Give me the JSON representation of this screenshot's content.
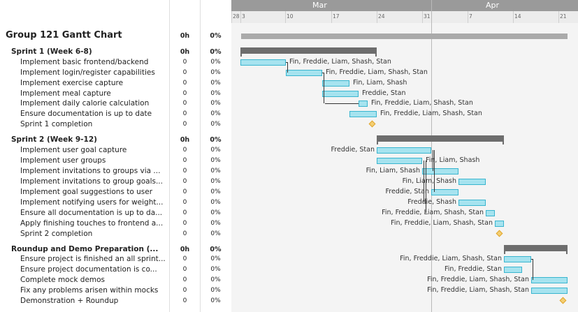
{
  "columns": {
    "hours": "0h",
    "percent": "0%"
  },
  "timeline": {
    "months": [
      {
        "label": "Mar '25"
      },
      {
        "label": "Apr '25"
      }
    ],
    "days": [
      "28",
      "3",
      "10",
      "17",
      "24",
      "31",
      "7",
      "14",
      "21"
    ]
  },
  "rows": [
    {
      "kind": "title",
      "name": "Group 121 Gantt Chart",
      "hours": "0h",
      "pct": "0%"
    },
    {
      "kind": "sprint",
      "name": "Sprint 1 (Week 6-8)",
      "hours": "0h",
      "pct": "0%"
    },
    {
      "kind": "task",
      "name": "Implement basic frontend/backend",
      "hours": "0",
      "pct": "0%",
      "assignee": "Fin, Freddie, Liam, Shash, Stan"
    },
    {
      "kind": "task",
      "name": "Implement login/register capabilities",
      "hours": "0",
      "pct": "0%",
      "assignee": "Fin, Freddie, Liam, Shash, Stan"
    },
    {
      "kind": "task",
      "name": "Implement exercise capture",
      "hours": "0",
      "pct": "0%",
      "assignee": "Fin, Liam, Shash"
    },
    {
      "kind": "task",
      "name": "Implement meal capture",
      "hours": "0",
      "pct": "0%",
      "assignee": "Freddie, Stan"
    },
    {
      "kind": "task",
      "name": "Implement daily calorie calculation",
      "hours": "0",
      "pct": "0%",
      "assignee": "Fin, Freddie, Liam, Shash, Stan"
    },
    {
      "kind": "task",
      "name": "Ensure documentation is up to date",
      "hours": "0",
      "pct": "0%",
      "assignee": "Fin, Freddie, Liam, Shash, Stan"
    },
    {
      "kind": "task",
      "name": "Sprint 1 completion",
      "hours": "0",
      "pct": "0%",
      "assignee": ""
    },
    {
      "kind": "sprint",
      "name": "Sprint 2 (Week 9-12)",
      "hours": "0h",
      "pct": "0%"
    },
    {
      "kind": "task",
      "name": "Implement user goal capture",
      "hours": "0",
      "pct": "0%",
      "assignee": "Freddie, Stan"
    },
    {
      "kind": "task",
      "name": "Implement user groups",
      "hours": "0",
      "pct": "0%",
      "assignee": "Fin, Liam, Shash"
    },
    {
      "kind": "task",
      "name": "Implement invitations to groups via ...",
      "hours": "0",
      "pct": "0%",
      "assignee": "Fin, Liam, Shash"
    },
    {
      "kind": "task",
      "name": "Implement invitations to group goals...",
      "hours": "0",
      "pct": "0%",
      "assignee": "Fin, Liam, Shash"
    },
    {
      "kind": "task",
      "name": "Implement goal suggestions to user",
      "hours": "0",
      "pct": "0%",
      "assignee": "Freddie, Stan"
    },
    {
      "kind": "task",
      "name": "Implement notifying users for weight...",
      "hours": "0",
      "pct": "0%",
      "assignee": "Freddie, Shash"
    },
    {
      "kind": "task",
      "name": "Ensure all documentation is up to da...",
      "hours": "0",
      "pct": "0%",
      "assignee": "Fin, Freddie, Liam, Shash, Stan"
    },
    {
      "kind": "task",
      "name": "Apply finishing touches to frontend a...",
      "hours": "0",
      "pct": "0%",
      "assignee": "Fin, Freddie, Liam, Shash, Stan"
    },
    {
      "kind": "task",
      "name": "Sprint 2 completion",
      "hours": "0",
      "pct": "0%",
      "assignee": ""
    },
    {
      "kind": "sprint",
      "name": "Roundup and Demo Preparation (...",
      "hours": "0h",
      "pct": "0%"
    },
    {
      "kind": "task",
      "name": "Ensure project is finished an all sprint...",
      "hours": "0",
      "pct": "0%",
      "assignee": "Fin, Freddie, Liam, Shash, Stan"
    },
    {
      "kind": "task",
      "name": "Ensure project documentation is co...",
      "hours": "0",
      "pct": "0%",
      "assignee": "Fin, Freddie, Stan"
    },
    {
      "kind": "task",
      "name": "Complete mock demos",
      "hours": "0",
      "pct": "0%",
      "assignee": "Fin, Freddie, Liam, Shash, Stan"
    },
    {
      "kind": "task",
      "name": "Fix any problems arisen within mocks",
      "hours": "0",
      "pct": "0%",
      "assignee": "Fin, Freddie, Liam, Shash, Stan"
    },
    {
      "kind": "task",
      "name": "Demonstration + Roundup",
      "hours": "0",
      "pct": "0%",
      "assignee": ""
    }
  ],
  "colors": {
    "task_fill": "#a6e3ef",
    "task_border": "#39b5cf",
    "summary": "#6d6d6d",
    "milestone": "#f4cf73",
    "month_band": "#9a9a9a"
  }
}
